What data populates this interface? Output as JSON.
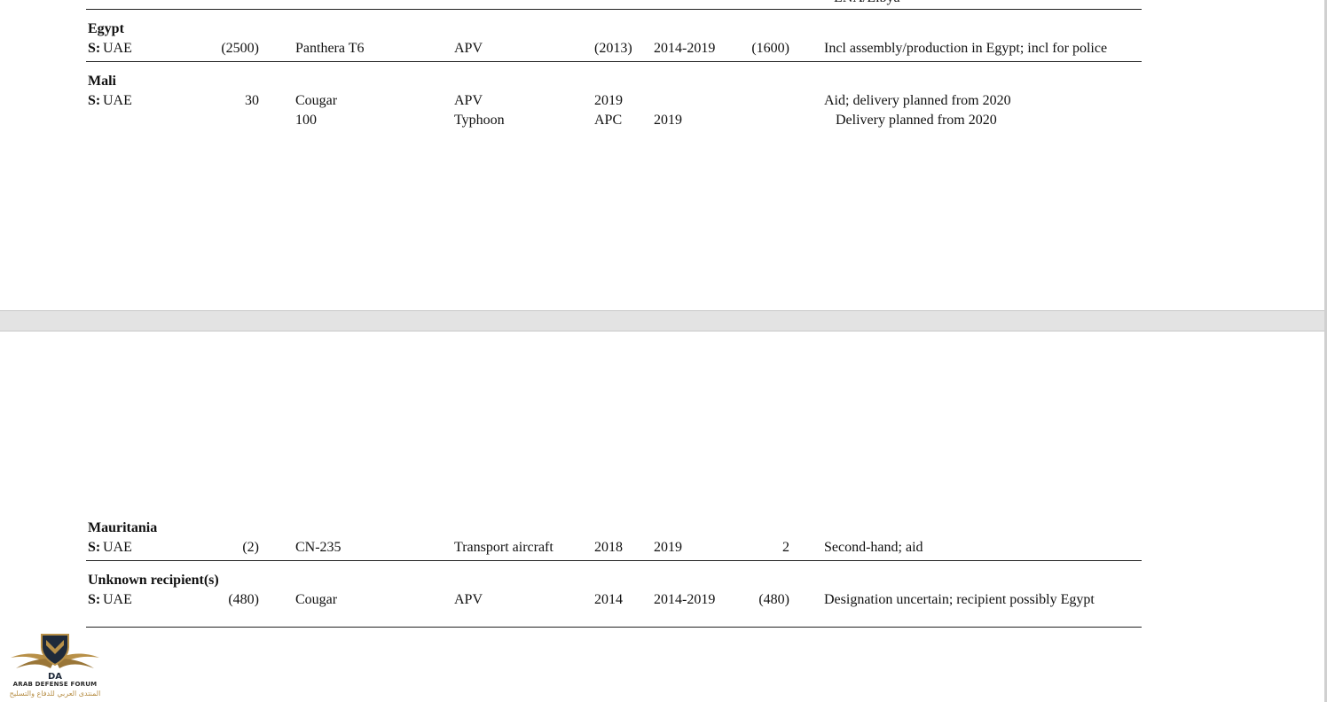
{
  "overflow_text": "LNA/Libya",
  "columns_note": "",
  "groups": {
    "egypt": {
      "country": "Egypt",
      "rows": [
        {
          "supplier_label": "S:",
          "supplier": "UAE",
          "ordered": "(2500)",
          "designation": "Panthera T6",
          "description": "APV",
          "order_year": "(2013)",
          "delivery_years": "2014-2019",
          "delivered": "(1600)",
          "comments": "Incl assembly/production in Egypt; incl for police"
        }
      ]
    },
    "mali": {
      "country": "Mali",
      "rows": [
        {
          "supplier_label": "S:",
          "supplier": "UAE",
          "ordered": "30",
          "designation": "Cougar",
          "description": "APV",
          "order_year": "2019",
          "delivery_years": "",
          "delivered": "",
          "comments": "Aid; delivery planned from 2020"
        },
        {
          "supplier_label": "",
          "supplier": "",
          "ordered": "",
          "designation": "100",
          "description": "Typhoon",
          "order_year": "APC",
          "delivery_years": "2019",
          "delivered": "",
          "comments": "Delivery planned from 2020"
        }
      ]
    },
    "mauritania": {
      "country": "Mauritania",
      "rows": [
        {
          "supplier_label": "S:",
          "supplier": "UAE",
          "ordered": "(2)",
          "designation": "CN-235",
          "description": "Transport aircraft",
          "order_year": "2018",
          "delivery_years": "2019",
          "delivered": "2",
          "comments": "Second-hand; aid"
        }
      ]
    },
    "unknown": {
      "country": "Unknown recipient(s)",
      "rows": [
        {
          "supplier_label": "S:",
          "supplier": "UAE",
          "ordered": "(480)",
          "designation": "Cougar",
          "description": "APV",
          "order_year": "2014",
          "delivery_years": "2014-2019",
          "delivered": "(480)",
          "comments": "Designation uncertain; recipient possibly Egypt"
        }
      ]
    }
  },
  "watermark": {
    "monogram": "DA",
    "name_en": "ARAB DEFENSE FORUM",
    "name_ar": "المنتدى العربي للدفاع والتسليح",
    "colors": {
      "gold": "#b89048",
      "navy": "#1f2a3a"
    }
  }
}
